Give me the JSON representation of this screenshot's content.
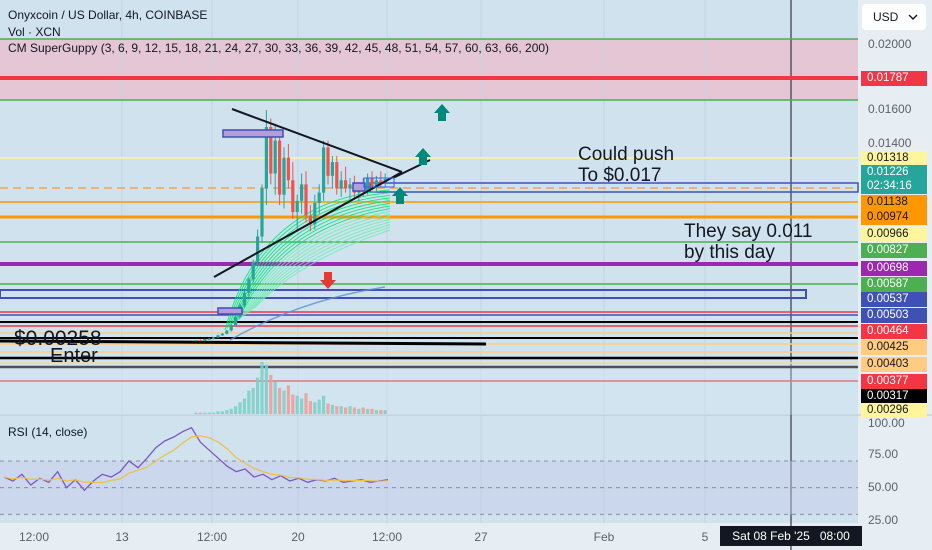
{
  "header": {
    "symbol_line": "Onyxcoin / US Dollar, 4h, COINBASE",
    "volume_line": "Vol · XCN",
    "indicator_line": "CM SuperGuppy (3, 6, 9, 12, 15, 18, 21, 24, 27, 30, 33, 36, 39, 42, 45, 48, 51, 54, 57, 60, 63, 66, 200)",
    "currency_button": "USD",
    "rsi_line": "RSI (14, close)"
  },
  "price_axis": {
    "ticks": [
      "0.02000",
      "0.01600",
      "0.01400"
    ],
    "tags": [
      {
        "label": "0.01787",
        "bg": "#f23645",
        "fg": "#ffffff"
      },
      {
        "label": "0.01318",
        "bg": "#fff59d",
        "fg": "#131722"
      },
      {
        "label": "0.01226",
        "bg": "#26a69a",
        "fg": "#ffffff"
      },
      {
        "label": "02:34:16",
        "bg": "#26a69a",
        "fg": "#ffffff"
      },
      {
        "label": "0.01138",
        "bg": "#ff9800",
        "fg": "#131722"
      },
      {
        "label": "0.00974",
        "bg": "#ff9800",
        "fg": "#131722"
      },
      {
        "label": "0.00966",
        "bg": "#fff59d",
        "fg": "#131722"
      },
      {
        "label": "0.00827",
        "bg": "#4caf50",
        "fg": "#ffffff"
      },
      {
        "label": "0.00698",
        "bg": "#9c27b0",
        "fg": "#ffffff"
      },
      {
        "label": "0.00587",
        "bg": "#4caf50",
        "fg": "#ffffff"
      },
      {
        "label": "0.00537",
        "bg": "#3f51b5",
        "fg": "#ffffff"
      },
      {
        "label": "0.00503",
        "bg": "#3f51b5",
        "fg": "#ffffff"
      },
      {
        "label": "0.00464",
        "bg": "#f23645",
        "fg": "#ffffff"
      },
      {
        "label": "0.00425",
        "bg": "#ffcc80",
        "fg": "#131722"
      },
      {
        "label": "0.00403",
        "bg": "#ffcc80",
        "fg": "#131722"
      },
      {
        "label": "0.00377",
        "bg": "#f23645",
        "fg": "#ffffff"
      },
      {
        "label": "0.00317",
        "bg": "#000000",
        "fg": "#ffffff"
      },
      {
        "label": "0.00296",
        "bg": "#fff59d",
        "fg": "#131722"
      }
    ]
  },
  "rsi_axis": {
    "ticks": [
      "100.00",
      "75.00",
      "50.00",
      "25.00"
    ]
  },
  "time_axis": {
    "labels": [
      "12:00",
      "13",
      "12:00",
      "20",
      "12:00",
      "27",
      "Feb",
      "5"
    ],
    "cursor_label": "Sat 08 Feb '25   08:00"
  },
  "annotations": {
    "push_line1": "Could push",
    "push_line2": "To $0.017",
    "say_line1": "They say 0.011",
    "say_line2": "by this day",
    "entry_price": "$0.00258",
    "entry_label": "Enter"
  },
  "colors": {
    "background": "#cfe2ee",
    "up": "#26a69a",
    "down": "#ef5350",
    "resistance_zone": "#e6c4d2"
  },
  "chart_data": [
    {
      "type": "candlestick",
      "title": "Onyxcoin / US Dollar, 4h, COINBASE",
      "x_labels": [
        "12:00",
        "13",
        "12:00",
        "20",
        "12:00",
        "27",
        "Feb",
        "5"
      ],
      "last_price": 0.01226,
      "horizontal_levels": [
        0.01787,
        0.01318,
        0.01138,
        0.00974,
        0.00966,
        0.00827,
        0.00698,
        0.00587,
        0.00537,
        0.00503,
        0.00464,
        0.00425,
        0.00403,
        0.00377,
        0.00317,
        0.00296
      ],
      "candles": [
        {
          "o": 0.00258,
          "h": 0.00262,
          "l": 0.00255,
          "c": 0.0026
        },
        {
          "o": 0.0026,
          "h": 0.00265,
          "l": 0.00256,
          "c": 0.00258
        },
        {
          "o": 0.00258,
          "h": 0.00268,
          "l": 0.00255,
          "c": 0.00266
        },
        {
          "o": 0.00266,
          "h": 0.00272,
          "l": 0.00262,
          "c": 0.00268
        },
        {
          "o": 0.00268,
          "h": 0.00278,
          "l": 0.00265,
          "c": 0.00275
        },
        {
          "o": 0.00275,
          "h": 0.0029,
          "l": 0.00272,
          "c": 0.00287
        },
        {
          "o": 0.00287,
          "h": 0.003,
          "l": 0.00283,
          "c": 0.00296
        },
        {
          "o": 0.00296,
          "h": 0.0032,
          "l": 0.00292,
          "c": 0.00316
        },
        {
          "o": 0.00316,
          "h": 0.0036,
          "l": 0.0031,
          "c": 0.00352
        },
        {
          "o": 0.00352,
          "h": 0.0042,
          "l": 0.00345,
          "c": 0.00405
        },
        {
          "o": 0.00405,
          "h": 0.0048,
          "l": 0.00398,
          "c": 0.0047
        },
        {
          "o": 0.0047,
          "h": 0.0056,
          "l": 0.0046,
          "c": 0.00545
        },
        {
          "o": 0.00545,
          "h": 0.0064,
          "l": 0.0052,
          "c": 0.0063
        },
        {
          "o": 0.0063,
          "h": 0.0076,
          "l": 0.0061,
          "c": 0.00745
        },
        {
          "o": 0.00745,
          "h": 0.0096,
          "l": 0.0072,
          "c": 0.0092
        },
        {
          "o": 0.0092,
          "h": 0.012,
          "l": 0.0088,
          "c": 0.0118
        },
        {
          "o": 0.0118,
          "h": 0.016,
          "l": 0.011,
          "c": 0.015
        },
        {
          "o": 0.015,
          "h": 0.0155,
          "l": 0.012,
          "c": 0.0125
        },
        {
          "o": 0.0125,
          "h": 0.0152,
          "l": 0.0115,
          "c": 0.0142
        },
        {
          "o": 0.0142,
          "h": 0.0145,
          "l": 0.011,
          "c": 0.0115
        },
        {
          "o": 0.0115,
          "h": 0.0138,
          "l": 0.0108,
          "c": 0.0132
        },
        {
          "o": 0.0132,
          "h": 0.014,
          "l": 0.0118,
          "c": 0.0122
        },
        {
          "o": 0.0122,
          "h": 0.013,
          "l": 0.0102,
          "c": 0.0106
        },
        {
          "o": 0.0106,
          "h": 0.0115,
          "l": 0.0095,
          "c": 0.0112
        },
        {
          "o": 0.0112,
          "h": 0.0125,
          "l": 0.0105,
          "c": 0.012
        },
        {
          "o": 0.012,
          "h": 0.0126,
          "l": 0.01,
          "c": 0.0104
        },
        {
          "o": 0.0104,
          "h": 0.011,
          "l": 0.0095,
          "c": 0.0099
        },
        {
          "o": 0.0099,
          "h": 0.0115,
          "l": 0.0096,
          "c": 0.0111
        },
        {
          "o": 0.0111,
          "h": 0.012,
          "l": 0.0105,
          "c": 0.0116
        },
        {
          "o": 0.0116,
          "h": 0.0142,
          "l": 0.0112,
          "c": 0.0138
        },
        {
          "o": 0.0138,
          "h": 0.0142,
          "l": 0.012,
          "c": 0.0124
        },
        {
          "o": 0.0124,
          "h": 0.0133,
          "l": 0.0118,
          "c": 0.013
        },
        {
          "o": 0.013,
          "h": 0.0133,
          "l": 0.0115,
          "c": 0.0118
        },
        {
          "o": 0.0118,
          "h": 0.0126,
          "l": 0.0114,
          "c": 0.0122
        },
        {
          "o": 0.0122,
          "h": 0.0128,
          "l": 0.0116,
          "c": 0.0118
        },
        {
          "o": 0.0118,
          "h": 0.0123,
          "l": 0.0113,
          "c": 0.012
        },
        {
          "o": 0.012,
          "h": 0.0124,
          "l": 0.0113,
          "c": 0.0116
        },
        {
          "o": 0.0116,
          "h": 0.0121,
          "l": 0.0112,
          "c": 0.0119
        },
        {
          "o": 0.0119,
          "h": 0.0123,
          "l": 0.0114,
          "c": 0.0117
        },
        {
          "o": 0.0117,
          "h": 0.0125,
          "l": 0.0115,
          "c": 0.0123
        },
        {
          "o": 0.0123,
          "h": 0.0126,
          "l": 0.0117,
          "c": 0.0119
        },
        {
          "o": 0.0119,
          "h": 0.0124,
          "l": 0.0116,
          "c": 0.0122
        },
        {
          "o": 0.0122,
          "h": 0.0126,
          "l": 0.0119,
          "c": 0.0121
        },
        {
          "o": 0.0121,
          "h": 0.0125,
          "l": 0.0119,
          "c": 0.01226
        }
      ],
      "volume": [
        1,
        1,
        1,
        1,
        1,
        2,
        2,
        3,
        4,
        6,
        9,
        12,
        18,
        20,
        28,
        40,
        38,
        30,
        25,
        20,
        18,
        22,
        15,
        14,
        12,
        16,
        10,
        9,
        11,
        14,
        8,
        7,
        6,
        6,
        5,
        6,
        5,
        4,
        5,
        4,
        4,
        3,
        3,
        3
      ]
    },
    {
      "type": "line",
      "title": "RSI (14, close)",
      "ylim": [
        25,
        100
      ],
      "series": [
        {
          "name": "RSI",
          "values": [
            58,
            55,
            60,
            52,
            57,
            54,
            62,
            50,
            56,
            48,
            55,
            60,
            58,
            62,
            70,
            65,
            72,
            80,
            85,
            88,
            92,
            95,
            84,
            78,
            72,
            66,
            62,
            64,
            58,
            60,
            56,
            59,
            55,
            57,
            54,
            56,
            55,
            57,
            54,
            55,
            56,
            54,
            55,
            56
          ]
        }
      ]
    }
  ]
}
